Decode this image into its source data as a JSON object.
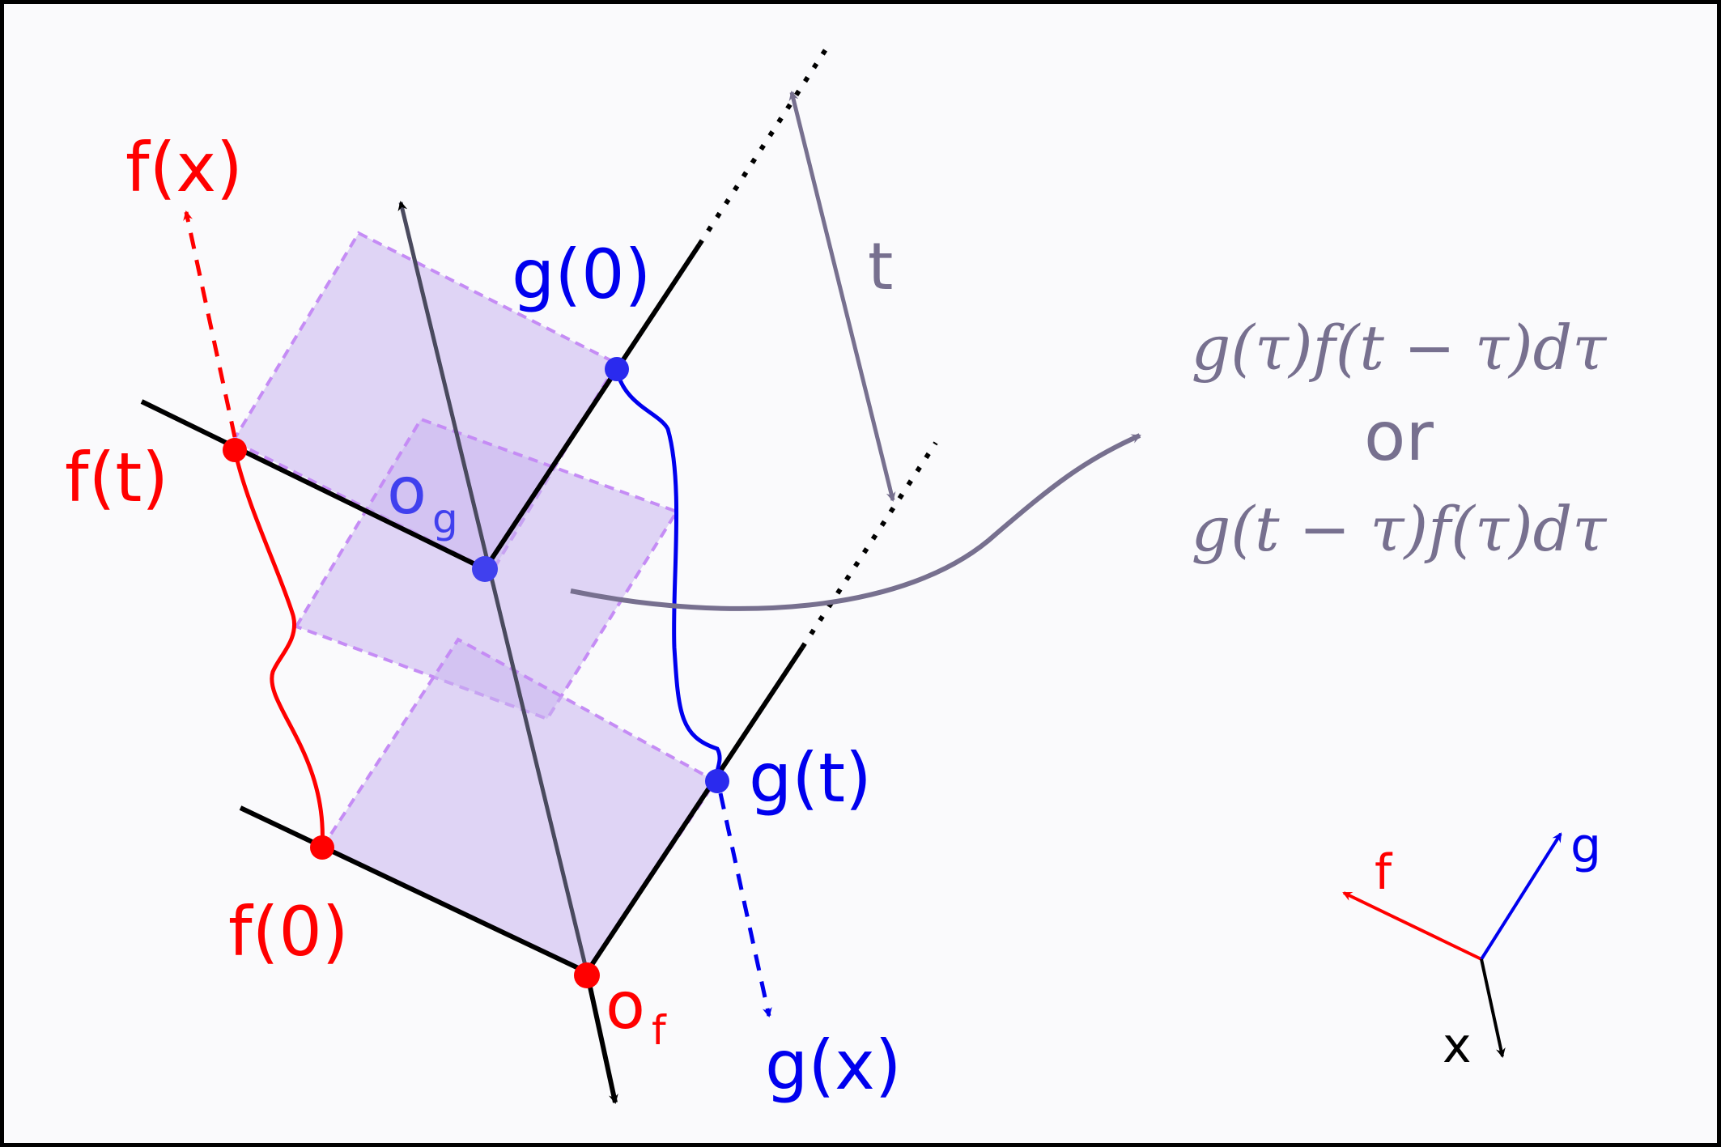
{
  "labels": {
    "f_x": "f(x)",
    "f_t": "f(t)",
    "f_0": "f(0)",
    "g_0": "g(0)",
    "g_t": "g(t)",
    "g_x": "g(x)",
    "o": "o",
    "o_g_sub": "g",
    "o_f_sub": "f",
    "t": "t"
  },
  "formula": {
    "top": "g(τ)f(t − τ)dτ",
    "middle": "or",
    "bottom": "g(t − τ)f(τ)dτ"
  },
  "axes_legend": {
    "f": "f",
    "g": "g",
    "x": "x"
  },
  "colors": {
    "f": "#ff0000",
    "g": "#0000ee",
    "annotation": "#77708f",
    "square_fill": "#c9b5ee",
    "square_edge": "#c58cf5",
    "axis": "#000000"
  }
}
